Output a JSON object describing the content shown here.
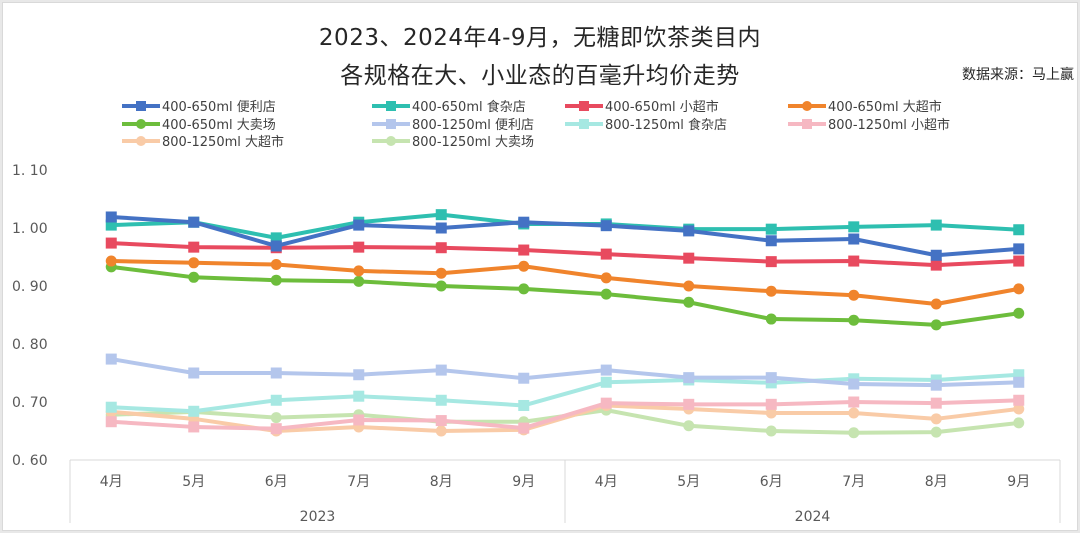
{
  "title_line1": "2023、2024年4-9月，无糖即饮茶类目内",
  "title_line2": "各规格在大、小业态的百毫升均价走势",
  "source": "数据来源：马上赢",
  "chart_data": {
    "type": "line",
    "title": "2023、2024年4-9月，无糖即饮茶类目内各规格在大、小业态的百毫升均价走势",
    "xlabel": "",
    "ylabel": "",
    "ylim": [
      0.6,
      1.1
    ],
    "yticks": [
      "0.60",
      "0.70",
      "0.80",
      "0.90",
      "1.00",
      "1.10"
    ],
    "ytick_values": [
      0.6,
      0.7,
      0.8,
      0.9,
      1.0,
      1.1
    ],
    "grid": false,
    "legend_position": "top",
    "categories": [
      "4月",
      "5月",
      "6月",
      "7月",
      "8月",
      "9月",
      "4月",
      "5月",
      "6月",
      "7月",
      "8月",
      "9月"
    ],
    "groups": [
      {
        "label": "2023",
        "count": 6
      },
      {
        "label": "2024",
        "count": 6
      }
    ],
    "series": [
      {
        "name": "400-650ml 便利店",
        "color": "#4472C4",
        "marker": "square",
        "values": [
          1.019,
          1.01,
          0.969,
          1.005,
          1.0,
          1.01,
          1.004,
          0.995,
          0.978,
          0.981,
          0.953,
          0.964
        ]
      },
      {
        "name": "400-650ml 食杂店",
        "color": "#2EBFB0",
        "marker": "square",
        "values": [
          1.005,
          1.01,
          0.983,
          1.01,
          1.023,
          1.007,
          1.007,
          0.998,
          0.998,
          1.002,
          1.005,
          0.997
        ]
      },
      {
        "name": "400-650ml 小超市",
        "color": "#E84A5F",
        "marker": "square",
        "values": [
          0.974,
          0.967,
          0.966,
          0.967,
          0.966,
          0.962,
          0.955,
          0.948,
          0.942,
          0.943,
          0.936,
          0.943
        ]
      },
      {
        "name": "400-650ml 大超市",
        "color": "#F0842C",
        "marker": "circle",
        "values": [
          0.943,
          0.94,
          0.937,
          0.926,
          0.922,
          0.934,
          0.914,
          0.9,
          0.891,
          0.884,
          0.869,
          0.895
        ]
      },
      {
        "name": "400-650ml 大卖场",
        "color": "#6DBD3C",
        "marker": "circle",
        "values": [
          0.933,
          0.915,
          0.91,
          0.908,
          0.9,
          0.895,
          0.886,
          0.872,
          0.843,
          0.841,
          0.833,
          0.853
        ]
      },
      {
        "name": "800-1250ml 便利店",
        "color": "#B4C6EC",
        "marker": "square",
        "values": [
          0.774,
          0.75,
          0.75,
          0.747,
          0.755,
          0.741,
          0.755,
          0.742,
          0.742,
          0.731,
          0.729,
          0.734
        ]
      },
      {
        "name": "800-1250ml 食杂店",
        "color": "#A6E8E2",
        "marker": "square",
        "values": [
          0.691,
          0.684,
          0.703,
          0.71,
          0.703,
          0.694,
          0.734,
          0.738,
          0.733,
          0.74,
          0.738,
          0.747
        ]
      },
      {
        "name": "800-1250ml 小超市",
        "color": "#F6B8C2",
        "marker": "square",
        "values": [
          0.666,
          0.657,
          0.654,
          0.669,
          0.668,
          0.655,
          0.698,
          0.696,
          0.696,
          0.7,
          0.698,
          0.703
        ]
      },
      {
        "name": "800-1250ml 大超市",
        "color": "#F9CBA7",
        "marker": "circle",
        "values": [
          0.683,
          0.671,
          0.65,
          0.657,
          0.65,
          0.652,
          0.694,
          0.688,
          0.681,
          0.681,
          0.671,
          0.688
        ]
      },
      {
        "name": "800-1250ml 大卖场",
        "color": "#C6E4B0",
        "marker": "circle",
        "values": [
          0.678,
          0.683,
          0.673,
          0.678,
          0.666,
          0.666,
          0.686,
          0.659,
          0.65,
          0.647,
          0.648,
          0.664
        ]
      }
    ]
  }
}
